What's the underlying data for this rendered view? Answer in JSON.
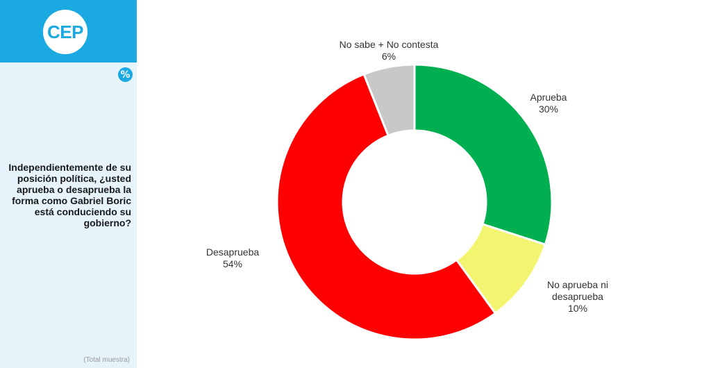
{
  "brand": {
    "logo_text": "CEP",
    "badge_text": "%"
  },
  "sidebar": {
    "question": "Independientemente de su posición política, ¿usted aprueba o desaprueba la forma como Gabriel Boric está conduciendo su gobierno?",
    "footnote": "(Total muestra)"
  },
  "colors": {
    "accent": "#1aa9e1",
    "aprueba": "#00b050",
    "ni": "#f3f571",
    "desaprueba": "#ff0000",
    "ns_nc": "#c8c8c8"
  },
  "chart_data": {
    "type": "pie",
    "donut": true,
    "title": "",
    "slices": [
      {
        "label": "Aprueba",
        "value": 30,
        "value_label": "30%",
        "color": "#00b050"
      },
      {
        "label": "No aprueba ni desaprueba",
        "value": 10,
        "value_label": "10%",
        "color": "#f3f571"
      },
      {
        "label": "Desaprueba",
        "value": 54,
        "value_label": "54%",
        "color": "#ff0000"
      },
      {
        "label": "No sabe + No contesta",
        "value": 6,
        "value_label": "6%",
        "color": "#c8c8c8"
      }
    ]
  }
}
